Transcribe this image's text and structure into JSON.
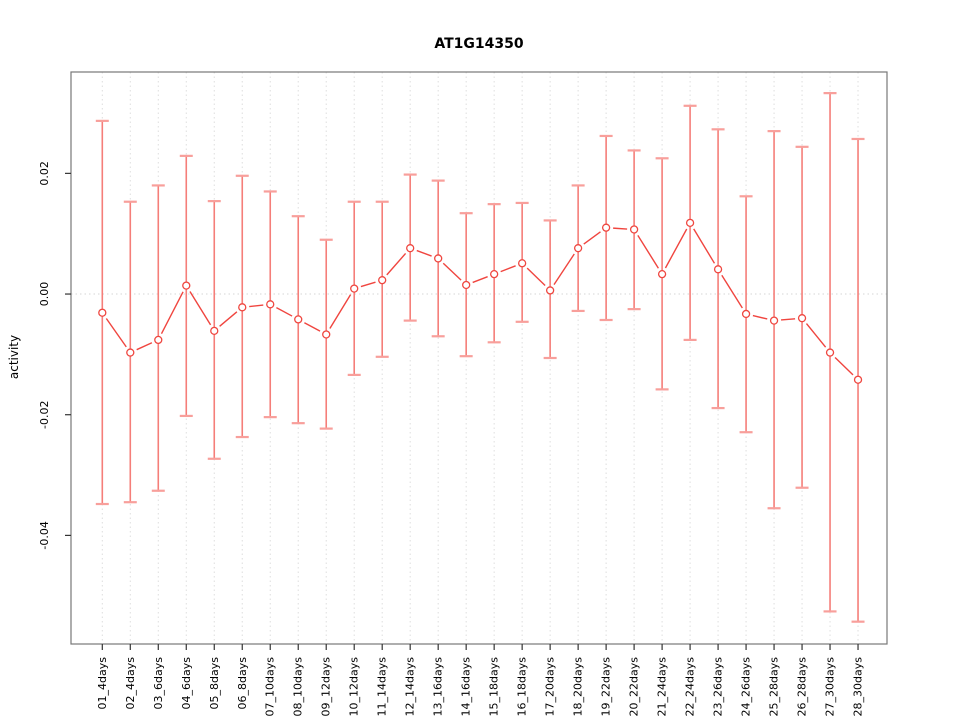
{
  "chart_data": {
    "type": "line",
    "title": "AT1G14350",
    "xlabel": "",
    "ylabel": "activity",
    "legend": "none",
    "grid": "dotted vertical gridline per category, dotted horizontal line at y=0",
    "categories": [
      "01_4days",
      "02_4days",
      "03_6days",
      "04_6days",
      "05_8days",
      "06_8days",
      "07_10days",
      "08_10days",
      "09_12days",
      "10_12days",
      "11_14days",
      "12_14days",
      "13_16days",
      "14_16days",
      "15_18days",
      "16_18days",
      "17_20days",
      "18_20days",
      "19_22days",
      "20_22days",
      "21_24days",
      "22_24days",
      "23_26days",
      "24_26days",
      "25_28days",
      "26_28days",
      "27_30days",
      "28_30days"
    ],
    "series": [
      {
        "name": "activity",
        "values": [
          -0.0031,
          -0.0097,
          -0.0076,
          0.0014,
          -0.0061,
          -0.0022,
          -0.0017,
          -0.0042,
          -0.0067,
          0.0009,
          0.0023,
          0.0076,
          0.0059,
          0.0015,
          0.0033,
          0.0051,
          0.0006,
          0.0076,
          0.011,
          0.0107,
          0.0033,
          0.0118,
          0.0041,
          -0.0033,
          -0.0044,
          -0.004,
          -0.0097,
          -0.0142
        ],
        "error_upper": [
          0.0287,
          0.0153,
          0.018,
          0.0229,
          0.0154,
          0.0196,
          0.017,
          0.0129,
          0.009,
          0.0153,
          0.0153,
          0.0198,
          0.0188,
          0.0134,
          0.0149,
          0.0151,
          0.0122,
          0.018,
          0.0262,
          0.0238,
          0.0225,
          0.0312,
          0.0273,
          0.0162,
          0.027,
          0.0244,
          0.0333,
          0.0257
        ],
        "error_lower": [
          -0.0348,
          -0.0345,
          -0.0326,
          -0.0202,
          -0.0273,
          -0.0237,
          -0.0204,
          -0.0214,
          -0.0223,
          -0.0134,
          -0.0104,
          -0.0044,
          -0.007,
          -0.0103,
          -0.008,
          -0.0046,
          -0.0106,
          -0.0028,
          -0.0043,
          -0.0025,
          -0.0158,
          -0.0076,
          -0.0189,
          -0.0229,
          -0.0355,
          -0.0321,
          -0.0526,
          -0.0543
        ]
      }
    ],
    "yticks": [
      0.02,
      0.0,
      -0.02,
      -0.04
    ],
    "ytick_labels": [
      "0.02",
      "0.00",
      "-0.02",
      "-0.04"
    ],
    "ylim": [
      -0.058,
      0.0368
    ],
    "colors": {
      "error_bar": "#f57e79",
      "error_cap": "#f89f9b",
      "series_line": "#f0453f",
      "marker_stroke": "#ef4740",
      "marker_fill": "#ffffff",
      "gridline": "#dedede",
      "zero_line": "#d6d6d6",
      "plot_border": "#777777",
      "tick": "#333333",
      "text": "#000000",
      "background": "#ffffff"
    }
  }
}
